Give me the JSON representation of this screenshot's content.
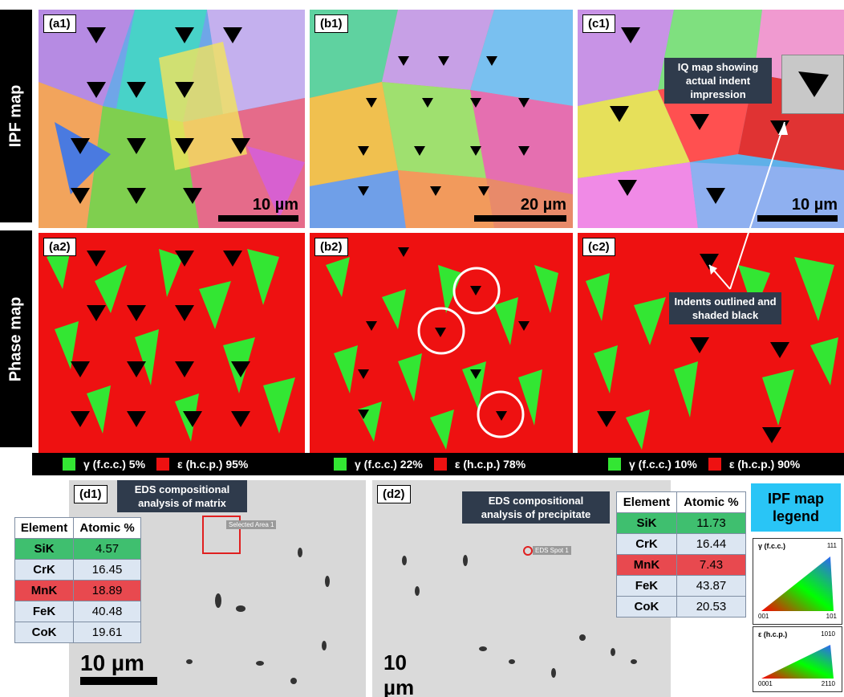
{
  "row_labels": {
    "ipf": "IPF map",
    "phase": "Phase map"
  },
  "panels": {
    "a1": "(a1)",
    "b1": "(b1)",
    "c1": "(c1)",
    "a2": "(a2)",
    "b2": "(b2)",
    "c2": "(c2)",
    "d1": "(d1)",
    "d2": "(d2)"
  },
  "scalebars": {
    "a1": "10 µm",
    "b1": "20 µm",
    "c1": "10 µm",
    "d1": "10 µm",
    "d2": "10 µm"
  },
  "callouts": {
    "iq": "IQ map showing actual indent impression",
    "indents": "Indents outlined and shaded black",
    "eds_matrix": "EDS compositional analysis of matrix",
    "eds_precip": "EDS compositional analysis of precipitate"
  },
  "phase_legend": [
    {
      "gamma": "γ (f.c.c.) 5%",
      "eps": "ε (h.c.p.) 95%"
    },
    {
      "gamma": "γ (f.c.c.) 22%",
      "eps": "ε (h.c.p.) 78%"
    },
    {
      "gamma": "γ (f.c.c.) 10%",
      "eps": "ε (h.c.p.) 90%"
    }
  ],
  "colors": {
    "gamma": "#33e633",
    "epsilon": "#ee1111"
  },
  "sem_labels": {
    "area": "Selected Area 1",
    "spot": "EDS Spot 1"
  },
  "eds_headers": [
    "Element",
    "Atomic %"
  ],
  "eds_matrix": [
    {
      "el": "SiK",
      "val": "4.57"
    },
    {
      "el": "CrK",
      "val": "16.45"
    },
    {
      "el": "MnK",
      "val": "18.89"
    },
    {
      "el": "FeK",
      "val": "40.48"
    },
    {
      "el": "CoK",
      "val": "19.61"
    }
  ],
  "eds_precipitate": [
    {
      "el": "SiK",
      "val": "11.73"
    },
    {
      "el": "CrK",
      "val": "16.44"
    },
    {
      "el": "MnK",
      "val": "7.43"
    },
    {
      "el": "FeK",
      "val": "43.87"
    },
    {
      "el": "CoK",
      "val": "20.53"
    }
  ],
  "ipf_legend": {
    "title": "IPF map legend",
    "fcc": "γ (f.c.c.)",
    "hcp": "ε (h.c.p.)",
    "fcc_corners": [
      "001",
      "101",
      "111"
    ],
    "hcp_corners": [
      "0001",
      "2110",
      "1010"
    ]
  }
}
